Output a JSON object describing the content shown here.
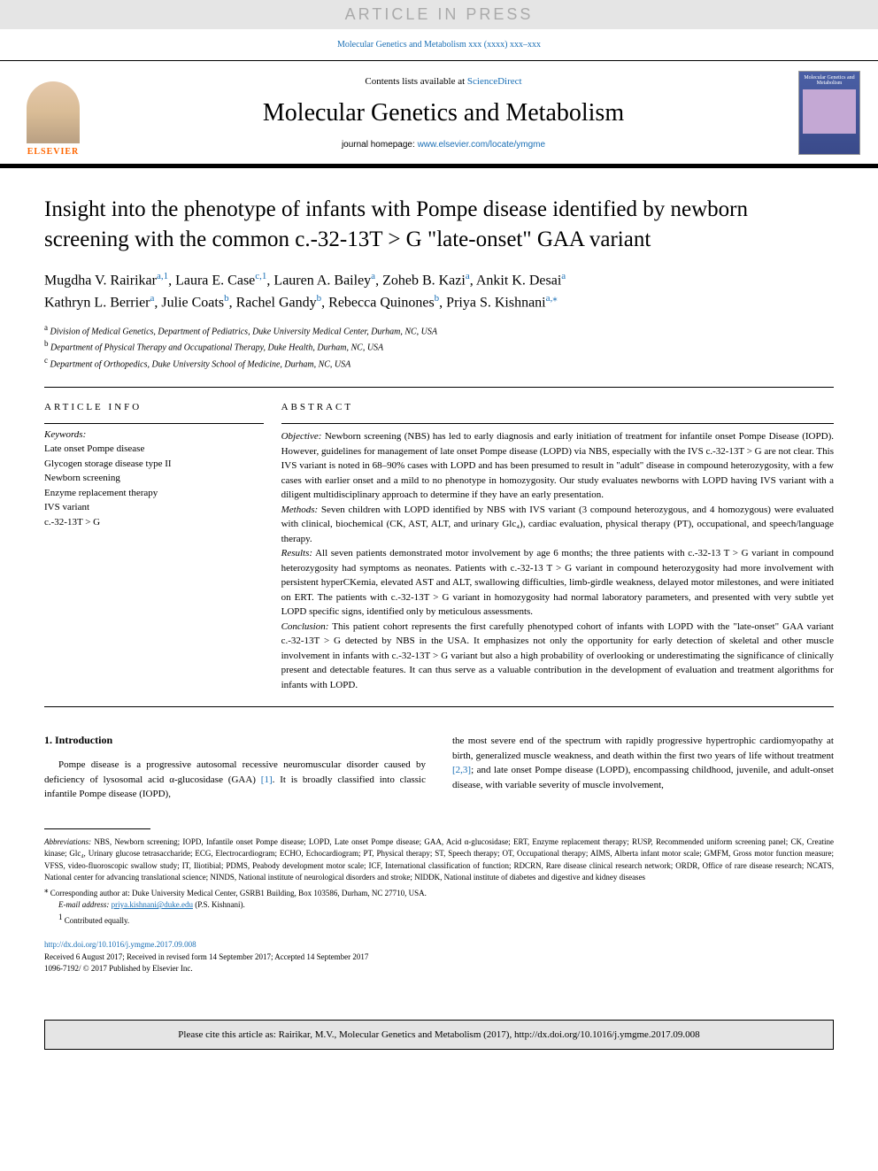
{
  "header": {
    "article_in_press": "ARTICLE IN PRESS",
    "journal_ref": "Molecular Genetics and Metabolism xxx (xxxx) xxx–xxx",
    "contents_prefix": "Contents lists available at ",
    "contents_link": "ScienceDirect",
    "journal_title": "Molecular Genetics and Metabolism",
    "homepage_prefix": "journal homepage: ",
    "homepage_link": "www.elsevier.com/locate/ymgme",
    "elsevier_label": "ELSEVIER",
    "cover_title": "Molecular Genetics and Metabolism"
  },
  "article": {
    "title": "Insight into the phenotype of infants with Pompe disease identified by newborn screening with the common c.-32-13T > G \"late-onset\" GAA variant",
    "authors_line1_parts": [
      {
        "name": "Mugdha V. Rairikar",
        "sup": "a,1"
      },
      {
        "name": "Laura E. Case",
        "sup": "c,1"
      },
      {
        "name": "Lauren A. Bailey",
        "sup": "a"
      },
      {
        "name": "Zoheb B. Kazi",
        "sup": "a"
      },
      {
        "name": "Ankit K. Desai",
        "sup": "a"
      }
    ],
    "authors_line2_parts": [
      {
        "name": "Kathryn L. Berrier",
        "sup": "a"
      },
      {
        "name": "Julie Coats",
        "sup": "b"
      },
      {
        "name": "Rachel Gandy",
        "sup": "b"
      },
      {
        "name": "Rebecca Quinones",
        "sup": "b"
      },
      {
        "name": "Priya S. Kishnani",
        "sup": "a,⁎"
      }
    ],
    "affiliations": [
      {
        "sup": "a",
        "text": "Division of Medical Genetics, Department of Pediatrics, Duke University Medical Center, Durham, NC, USA"
      },
      {
        "sup": "b",
        "text": "Department of Physical Therapy and Occupational Therapy, Duke Health, Durham, NC, USA"
      },
      {
        "sup": "c",
        "text": "Department of Orthopedics, Duke University School of Medicine, Durham, NC, USA"
      }
    ]
  },
  "article_info": {
    "heading": "ARTICLE INFO",
    "keywords_label": "Keywords:",
    "keywords": [
      "Late onset Pompe disease",
      "Glycogen storage disease type II",
      "Newborn screening",
      "Enzyme replacement therapy",
      "IVS variant",
      "c.-32-13T > G"
    ]
  },
  "abstract": {
    "heading": "ABSTRACT",
    "sections": [
      {
        "label": "Objective:",
        "text": " Newborn screening (NBS) has led to early diagnosis and early initiation of treatment for infantile onset Pompe Disease (IOPD). However, guidelines for management of late onset Pompe disease (LOPD) via NBS, especially with the IVS c.-32-13T > G are not clear. This IVS variant is noted in 68–90% cases with LOPD and has been presumed to result in \"adult\" disease in compound heterozygosity, with a few cases with earlier onset and a mild to no phenotype in homozygosity. Our study evaluates newborns with LOPD having IVS variant with a diligent multidisciplinary approach to determine if they have an early presentation."
      },
      {
        "label": "Methods:",
        "text": " Seven children with LOPD identified by NBS with IVS variant (3 compound heterozygous, and 4 homozygous) were evaluated with clinical, biochemical (CK, AST, ALT, and urinary Glc₄), cardiac evaluation, physical therapy (PT), occupational, and speech/language therapy."
      },
      {
        "label": "Results:",
        "text": " All seven patients demonstrated motor involvement by age 6 months; the three patients with c.-32-13 T > G variant in compound heterozygosity had symptoms as neonates. Patients with c.-32-13 T > G variant in compound heterozygosity had more involvement with persistent hyperCKemia, elevated AST and ALT, swallowing difficulties, limb-girdle weakness, delayed motor milestones, and were initiated on ERT. The patients with c.-32-13T > G variant in homozygosity had normal laboratory parameters, and presented with very subtle yet LOPD specific signs, identified only by meticulous assessments."
      },
      {
        "label": "Conclusion:",
        "text": " This patient cohort represents the first carefully phenotyped cohort of infants with LOPD with the \"late-onset\" GAA variant c.-32-13T > G detected by NBS in the USA. It emphasizes not only the opportunity for early detection of skeletal and other muscle involvement in infants with c.-32-13T > G variant but also a high probability of overlooking or underestimating the significance of clinically present and detectable features. It can thus serve as a valuable contribution in the development of evaluation and treatment algorithms for infants with LOPD."
      }
    ]
  },
  "intro": {
    "heading": "1. Introduction",
    "col1": "Pompe disease is a progressive autosomal recessive neuromuscular disorder caused by deficiency of lysosomal acid α-glucosidase (GAA) ",
    "col1_cite": "[1]",
    "col1_after": ". It is broadly classified into classic infantile Pompe disease (IOPD),",
    "col2_before": "the most severe end of the spectrum with rapidly progressive hypertrophic cardiomyopathy at birth, generalized muscle weakness, and death within the first two years of life without treatment ",
    "col2_cite": "[2,3]",
    "col2_after": "; and late onset Pompe disease (LOPD), encompassing childhood, juvenile, and adult-onset disease, with variable severity of muscle involvement,"
  },
  "footer": {
    "abbrev_label": "Abbreviations:",
    "abbrev_text": " NBS, Newborn screening; IOPD, Infantile onset Pompe disease; LOPD, Late onset Pompe disease; GAA, Acid α-glucosidase; ERT, Enzyme replacement therapy; RUSP, Recommended uniform screening panel; CK, Creatine kinase; Glc₄, Urinary glucose tetrasaccharide; ECG, Electrocardiogram; ECHO, Echocardiogram; PT, Physical therapy; ST, Speech therapy; OT, Occupational therapy; AIMS, Alberta infant motor scale; GMFM, Gross motor function measure; VFSS, video-fluoroscopic swallow study; IT, Iliotibial; PDMS, Peabody development motor scale; ICF, International classification of function; RDCRN, Rare disease clinical research network; ORDR, Office of rare disease research; NCATS, National center for advancing translational science; NINDS, National institute of neurological disorders and stroke; NIDDK, National institute of diabetes and digestive and kidney diseases",
    "corresponding_sup": "⁎",
    "corresponding": " Corresponding author at: Duke University Medical Center, GSRB1 Building, Box 103586, Durham, NC 27710, USA.",
    "email_label": "E-mail address:",
    "email": "priya.kishnani@duke.edu",
    "email_suffix": " (P.S. Kishnani).",
    "contributed_sup": "1",
    "contributed": " Contributed equally.",
    "doi": "http://dx.doi.org/10.1016/j.ymgme.2017.09.008",
    "received": "Received 6 August 2017; Received in revised form 14 September 2017; Accepted 14 September 2017",
    "copyright": "1096-7192/ © 2017 Published by Elsevier Inc."
  },
  "citebox": "Please cite this article as: Rairikar, M.V., Molecular Genetics and Metabolism (2017), http://dx.doi.org/10.1016/j.ymgme.2017.09.008",
  "colors": {
    "link": "#1a6fb5",
    "gray_bg": "#e5e5e5",
    "elsevier_orange": "#ff6600"
  }
}
